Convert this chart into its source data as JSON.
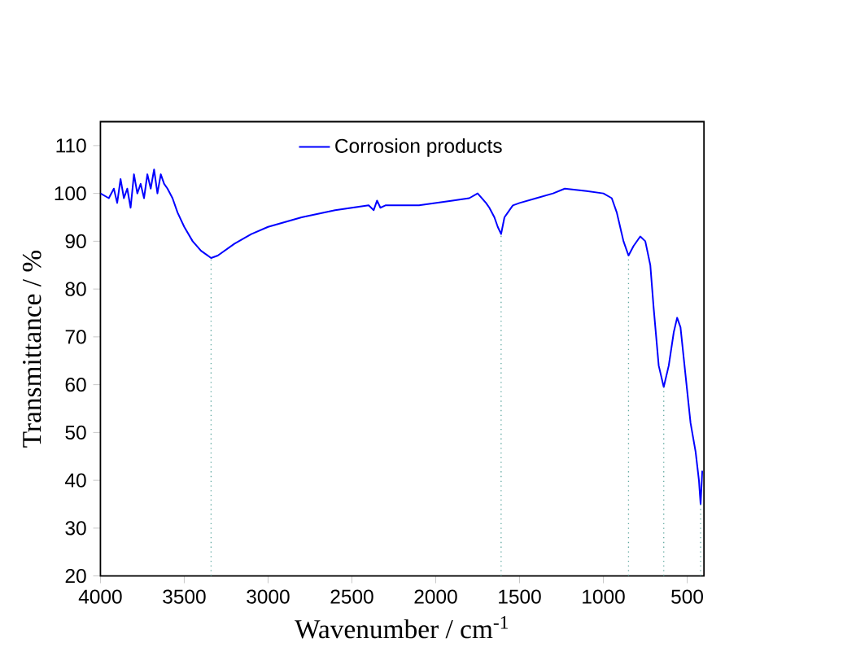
{
  "chart_data": {
    "type": "line",
    "xlabel": "Wavenumber / cm$^{-1}$",
    "ylabel": "Transmittance / %",
    "xlim": [
      4000,
      400
    ],
    "ylim": [
      20,
      115
    ],
    "xticks": [
      4000,
      3500,
      3000,
      2500,
      2000,
      1500,
      1000,
      500
    ],
    "yticks": [
      20,
      30,
      40,
      50,
      60,
      70,
      80,
      90,
      100,
      110
    ],
    "legend": "top",
    "grid": false,
    "marker": "none",
    "line_style": "solid",
    "x": [
      4000,
      3950,
      3920,
      3900,
      3880,
      3860,
      3840,
      3820,
      3800,
      3780,
      3760,
      3740,
      3720,
      3700,
      3680,
      3660,
      3640,
      3620,
      3600,
      3570,
      3540,
      3500,
      3450,
      3400,
      3340,
      3300,
      3200,
      3100,
      3000,
      2800,
      2600,
      2400,
      2370,
      2350,
      2330,
      2300,
      2200,
      2100,
      2000,
      1900,
      1800,
      1750,
      1700,
      1680,
      1650,
      1630,
      1610,
      1590,
      1570,
      1540,
      1500,
      1400,
      1300,
      1230,
      1100,
      1000,
      950,
      920,
      880,
      850,
      820,
      780,
      750,
      720,
      700,
      670,
      640,
      610,
      580,
      560,
      540,
      510,
      480,
      450,
      430,
      420,
      410
    ],
    "series": [
      {
        "name": "Corrosion products",
        "color": "#0000ff",
        "values": [
          100,
          99,
          101,
          98,
          103,
          99,
          101,
          97,
          104,
          100,
          102,
          99,
          104,
          101,
          105,
          100,
          104,
          102,
          101,
          99,
          96,
          93,
          90,
          88,
          86.5,
          87,
          89.5,
          91.5,
          93,
          95,
          96.5,
          97.5,
          96.5,
          98.5,
          97,
          97.5,
          97.5,
          97.5,
          98,
          98.5,
          99,
          100,
          98,
          97,
          95,
          93,
          91.5,
          95,
          96,
          97.5,
          98,
          99,
          100,
          101,
          100.5,
          100,
          99,
          96,
          90,
          87,
          89,
          91,
          90,
          85,
          76,
          64,
          59.5,
          64,
          71,
          74,
          72,
          62,
          52,
          46,
          40,
          35,
          42
        ]
      }
    ],
    "ref_lines": [
      {
        "axis": "x",
        "value": 3340,
        "color": "#5fa8a0",
        "line_style": "dotted"
      },
      {
        "axis": "x",
        "value": 1610,
        "color": "#5fa8a0",
        "line_style": "dotted"
      },
      {
        "axis": "x",
        "value": 850,
        "color": "#5fa8a0",
        "line_style": "dotted"
      },
      {
        "axis": "x",
        "value": 640,
        "color": "#5fa8a0",
        "line_style": "dotted"
      },
      {
        "axis": "x",
        "value": 420,
        "color": "#5fa8a0",
        "line_style": "dotted"
      }
    ]
  }
}
